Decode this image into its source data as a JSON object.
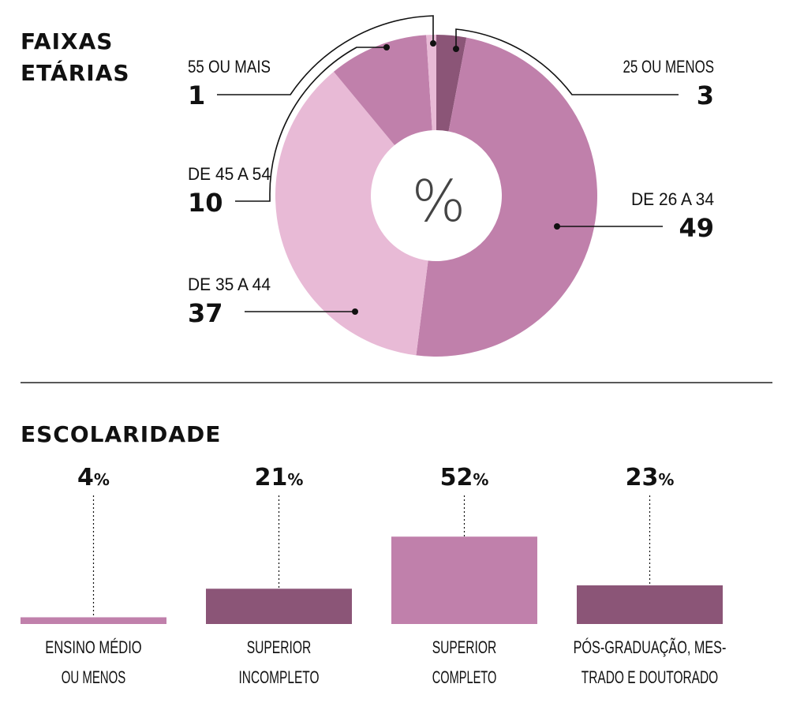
{
  "chart_data": [
    {
      "type": "pie",
      "title": "FAIXAS ETÁRIAS",
      "center_label": "%",
      "donut": true,
      "slices": [
        {
          "label": "25 OU MENOS",
          "value": 3,
          "color": "#8b5577"
        },
        {
          "label": "DE 26 A 34",
          "value": 49,
          "color": "#c080ab"
        },
        {
          "label": "DE 35 A 44",
          "value": 37,
          "color": "#e8bad6"
        },
        {
          "label": "DE 45 A 54",
          "value": 10,
          "color": "#c080ab"
        },
        {
          "label": "55 OU MAIS",
          "value": 1,
          "color": "#e8bad6"
        }
      ]
    },
    {
      "type": "bar",
      "title": "ESCOLARIDADE",
      "unit": "%",
      "categories": [
        [
          "ENSINO MÉDIO",
          "OU MENOS"
        ],
        [
          "SUPERIOR",
          "INCOMPLETO"
        ],
        [
          "SUPERIOR",
          "COMPLETO"
        ],
        [
          "PÓS-GRADUAÇÃO, MES-",
          "TRADO E DOUTORADO"
        ]
      ],
      "values": [
        4,
        21,
        52,
        23
      ],
      "colors": [
        "#c080ab",
        "#8b5577",
        "#c080ab",
        "#8b5577"
      ]
    }
  ]
}
